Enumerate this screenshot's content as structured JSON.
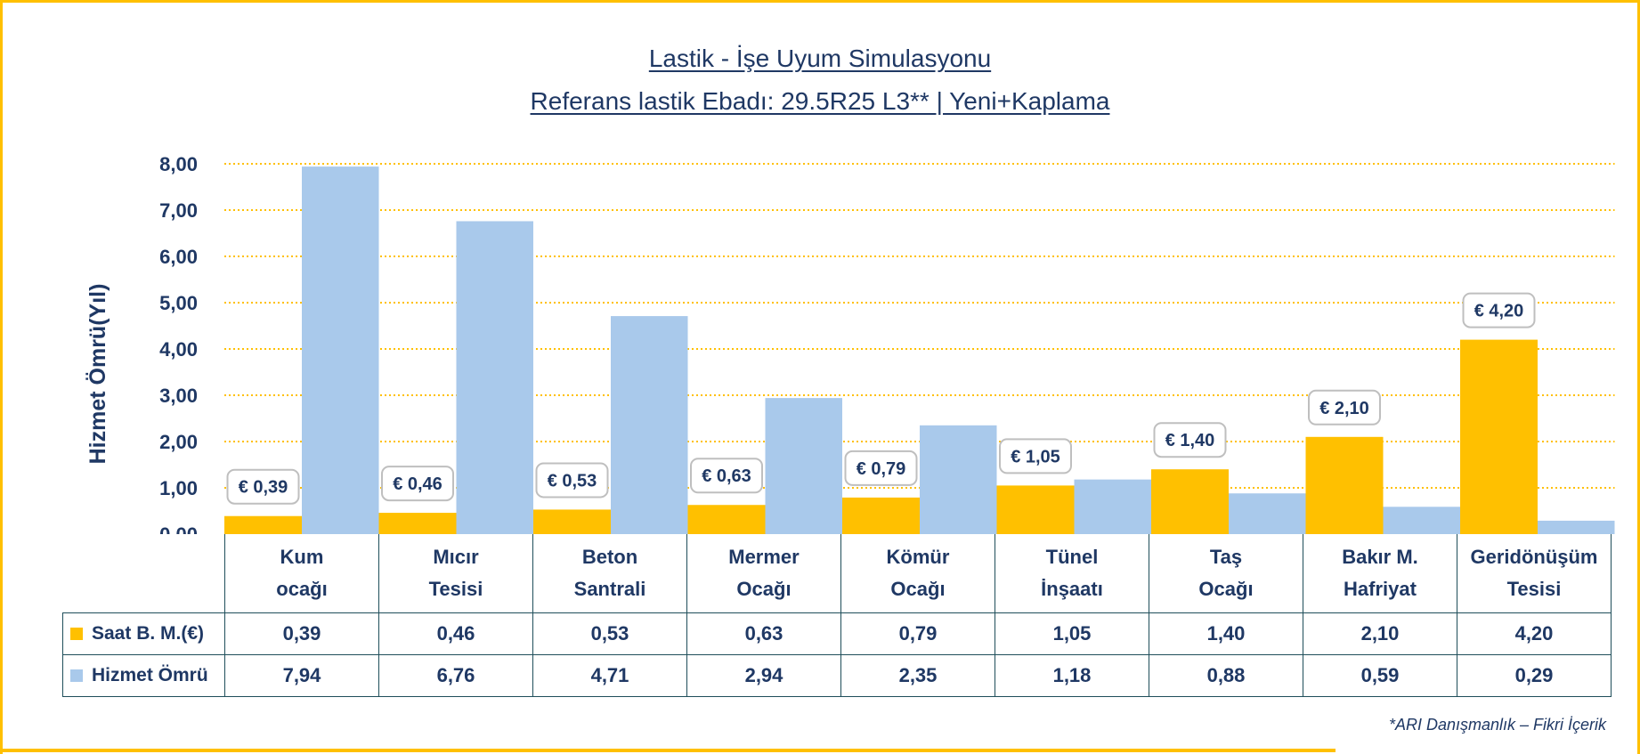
{
  "title_line1": "Lastik - İşe Uyum Simulasyonu",
  "title_line2": "Referans lastik Ebadı: 29.5R25 L3** | Yeni+Kaplama",
  "footnote": "*ARI Danışmanlık – Fikri İçerik",
  "colors": {
    "cost": "#FFC000",
    "life": "#A9C9EB",
    "text": "#1F3864",
    "grid": "#FFC000"
  },
  "chart_data": {
    "type": "bar",
    "ylabel": "Hizmet Ömrü(Yıl)",
    "ylim": [
      0,
      8
    ],
    "yticks": [
      "0,00",
      "1,00",
      "2,00",
      "3,00",
      "4,00",
      "5,00",
      "6,00",
      "7,00",
      "8,00"
    ],
    "grid": true,
    "categories": [
      [
        "Kum",
        "ocağı"
      ],
      [
        "Mıcır",
        "Tesisi"
      ],
      [
        "Beton",
        "Santrali"
      ],
      [
        "Mermer",
        "Ocağı"
      ],
      [
        "Kömür",
        "Ocağı"
      ],
      [
        "Tünel",
        "İnşaatı"
      ],
      [
        "Taş",
        "Ocağı"
      ],
      [
        "Bakır M.",
        "Hafriyat"
      ],
      [
        "Geridönüşüm",
        "Tesisi"
      ]
    ],
    "series": [
      {
        "name": "Saat B. M.(€)",
        "values": [
          0.39,
          0.46,
          0.53,
          0.63,
          0.79,
          1.05,
          1.4,
          2.1,
          4.2
        ],
        "value_labels": [
          "0,39",
          "0,46",
          "0,53",
          "0,63",
          "0,79",
          "1,05",
          "1,40",
          "2,10",
          "4,20"
        ],
        "data_labels": [
          "€ 0,39",
          "€ 0,46",
          "€ 0,53",
          "€ 0,63",
          "€ 0,79",
          "€ 1,05",
          "€ 1,40",
          "€ 2,10",
          "€ 4,20"
        ]
      },
      {
        "name": "Hizmet Ömrü",
        "values": [
          7.94,
          6.76,
          4.71,
          2.94,
          2.35,
          1.18,
          0.88,
          0.59,
          0.29
        ],
        "value_labels": [
          "7,94",
          "6,76",
          "4,71",
          "2,94",
          "2,35",
          "1,18",
          "0,88",
          "0,59",
          "0,29"
        ]
      }
    ]
  }
}
